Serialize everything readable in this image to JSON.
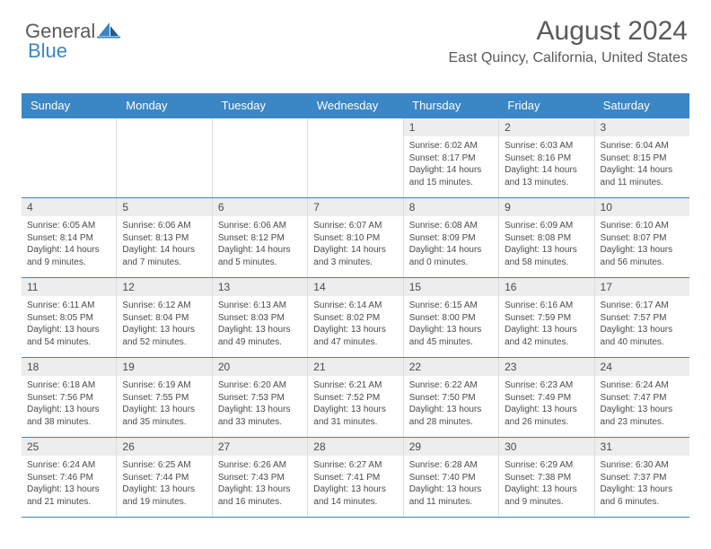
{
  "brand": {
    "word1": "General",
    "word2": "Blue",
    "color_primary": "#3b86c4",
    "color_text": "#5a5a5a"
  },
  "header": {
    "title": "August 2024",
    "location": "East Quincy, California, United States"
  },
  "calendar": {
    "type": "table",
    "background_color": "#ffffff",
    "header_bg": "#3b86c4",
    "header_fg": "#ffffff",
    "daynum_bg": "#ededed",
    "border_color": "#3b86c4",
    "cell_border_color": "#dcdcdc",
    "fontsize_dow": 13,
    "fontsize_daynum": 12,
    "fontsize_body": 10,
    "columns": [
      "Sunday",
      "Monday",
      "Tuesday",
      "Wednesday",
      "Thursday",
      "Friday",
      "Saturday"
    ],
    "weeks": [
      [
        {
          "n": "",
          "sunrise": "",
          "sunset": "",
          "daylight": ""
        },
        {
          "n": "",
          "sunrise": "",
          "sunset": "",
          "daylight": ""
        },
        {
          "n": "",
          "sunrise": "",
          "sunset": "",
          "daylight": ""
        },
        {
          "n": "",
          "sunrise": "",
          "sunset": "",
          "daylight": ""
        },
        {
          "n": "1",
          "sunrise": "Sunrise: 6:02 AM",
          "sunset": "Sunset: 8:17 PM",
          "daylight": "Daylight: 14 hours and 15 minutes."
        },
        {
          "n": "2",
          "sunrise": "Sunrise: 6:03 AM",
          "sunset": "Sunset: 8:16 PM",
          "daylight": "Daylight: 14 hours and 13 minutes."
        },
        {
          "n": "3",
          "sunrise": "Sunrise: 6:04 AM",
          "sunset": "Sunset: 8:15 PM",
          "daylight": "Daylight: 14 hours and 11 minutes."
        }
      ],
      [
        {
          "n": "4",
          "sunrise": "Sunrise: 6:05 AM",
          "sunset": "Sunset: 8:14 PM",
          "daylight": "Daylight: 14 hours and 9 minutes."
        },
        {
          "n": "5",
          "sunrise": "Sunrise: 6:06 AM",
          "sunset": "Sunset: 8:13 PM",
          "daylight": "Daylight: 14 hours and 7 minutes."
        },
        {
          "n": "6",
          "sunrise": "Sunrise: 6:06 AM",
          "sunset": "Sunset: 8:12 PM",
          "daylight": "Daylight: 14 hours and 5 minutes."
        },
        {
          "n": "7",
          "sunrise": "Sunrise: 6:07 AM",
          "sunset": "Sunset: 8:10 PM",
          "daylight": "Daylight: 14 hours and 3 minutes."
        },
        {
          "n": "8",
          "sunrise": "Sunrise: 6:08 AM",
          "sunset": "Sunset: 8:09 PM",
          "daylight": "Daylight: 14 hours and 0 minutes."
        },
        {
          "n": "9",
          "sunrise": "Sunrise: 6:09 AM",
          "sunset": "Sunset: 8:08 PM",
          "daylight": "Daylight: 13 hours and 58 minutes."
        },
        {
          "n": "10",
          "sunrise": "Sunrise: 6:10 AM",
          "sunset": "Sunset: 8:07 PM",
          "daylight": "Daylight: 13 hours and 56 minutes."
        }
      ],
      [
        {
          "n": "11",
          "sunrise": "Sunrise: 6:11 AM",
          "sunset": "Sunset: 8:05 PM",
          "daylight": "Daylight: 13 hours and 54 minutes."
        },
        {
          "n": "12",
          "sunrise": "Sunrise: 6:12 AM",
          "sunset": "Sunset: 8:04 PM",
          "daylight": "Daylight: 13 hours and 52 minutes."
        },
        {
          "n": "13",
          "sunrise": "Sunrise: 6:13 AM",
          "sunset": "Sunset: 8:03 PM",
          "daylight": "Daylight: 13 hours and 49 minutes."
        },
        {
          "n": "14",
          "sunrise": "Sunrise: 6:14 AM",
          "sunset": "Sunset: 8:02 PM",
          "daylight": "Daylight: 13 hours and 47 minutes."
        },
        {
          "n": "15",
          "sunrise": "Sunrise: 6:15 AM",
          "sunset": "Sunset: 8:00 PM",
          "daylight": "Daylight: 13 hours and 45 minutes."
        },
        {
          "n": "16",
          "sunrise": "Sunrise: 6:16 AM",
          "sunset": "Sunset: 7:59 PM",
          "daylight": "Daylight: 13 hours and 42 minutes."
        },
        {
          "n": "17",
          "sunrise": "Sunrise: 6:17 AM",
          "sunset": "Sunset: 7:57 PM",
          "daylight": "Daylight: 13 hours and 40 minutes."
        }
      ],
      [
        {
          "n": "18",
          "sunrise": "Sunrise: 6:18 AM",
          "sunset": "Sunset: 7:56 PM",
          "daylight": "Daylight: 13 hours and 38 minutes."
        },
        {
          "n": "19",
          "sunrise": "Sunrise: 6:19 AM",
          "sunset": "Sunset: 7:55 PM",
          "daylight": "Daylight: 13 hours and 35 minutes."
        },
        {
          "n": "20",
          "sunrise": "Sunrise: 6:20 AM",
          "sunset": "Sunset: 7:53 PM",
          "daylight": "Daylight: 13 hours and 33 minutes."
        },
        {
          "n": "21",
          "sunrise": "Sunrise: 6:21 AM",
          "sunset": "Sunset: 7:52 PM",
          "daylight": "Daylight: 13 hours and 31 minutes."
        },
        {
          "n": "22",
          "sunrise": "Sunrise: 6:22 AM",
          "sunset": "Sunset: 7:50 PM",
          "daylight": "Daylight: 13 hours and 28 minutes."
        },
        {
          "n": "23",
          "sunrise": "Sunrise: 6:23 AM",
          "sunset": "Sunset: 7:49 PM",
          "daylight": "Daylight: 13 hours and 26 minutes."
        },
        {
          "n": "24",
          "sunrise": "Sunrise: 6:24 AM",
          "sunset": "Sunset: 7:47 PM",
          "daylight": "Daylight: 13 hours and 23 minutes."
        }
      ],
      [
        {
          "n": "25",
          "sunrise": "Sunrise: 6:24 AM",
          "sunset": "Sunset: 7:46 PM",
          "daylight": "Daylight: 13 hours and 21 minutes."
        },
        {
          "n": "26",
          "sunrise": "Sunrise: 6:25 AM",
          "sunset": "Sunset: 7:44 PM",
          "daylight": "Daylight: 13 hours and 19 minutes."
        },
        {
          "n": "27",
          "sunrise": "Sunrise: 6:26 AM",
          "sunset": "Sunset: 7:43 PM",
          "daylight": "Daylight: 13 hours and 16 minutes."
        },
        {
          "n": "28",
          "sunrise": "Sunrise: 6:27 AM",
          "sunset": "Sunset: 7:41 PM",
          "daylight": "Daylight: 13 hours and 14 minutes."
        },
        {
          "n": "29",
          "sunrise": "Sunrise: 6:28 AM",
          "sunset": "Sunset: 7:40 PM",
          "daylight": "Daylight: 13 hours and 11 minutes."
        },
        {
          "n": "30",
          "sunrise": "Sunrise: 6:29 AM",
          "sunset": "Sunset: 7:38 PM",
          "daylight": "Daylight: 13 hours and 9 minutes."
        },
        {
          "n": "31",
          "sunrise": "Sunrise: 6:30 AM",
          "sunset": "Sunset: 7:37 PM",
          "daylight": "Daylight: 13 hours and 6 minutes."
        }
      ]
    ]
  }
}
